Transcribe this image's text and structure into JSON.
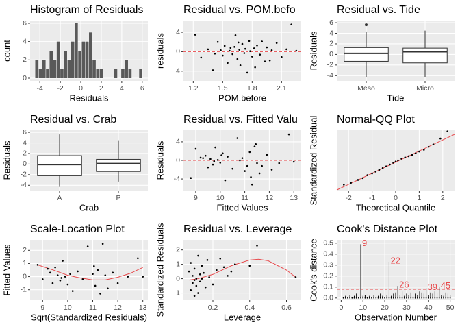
{
  "chart_data": [
    {
      "type": "histogram",
      "title": "Histogram of Residuals",
      "x_label": "Residuals",
      "y_label": "count",
      "bins": [
        -4.45,
        -4.1,
        -3.75,
        -3.4,
        -3.05,
        -2.7,
        -2.35,
        -2.0,
        -1.65,
        -1.3,
        -0.95,
        -0.6,
        -0.25,
        0.1,
        0.45,
        0.8,
        1.15,
        1.5,
        1.85,
        2.2,
        2.55,
        2.9,
        3.25,
        3.6,
        3.95,
        4.3,
        4.65,
        5.0,
        5.35,
        5.7,
        6.05
      ],
      "counts": [
        2,
        1,
        2,
        1,
        3,
        2,
        4,
        1,
        3,
        2,
        4,
        6,
        3,
        4,
        4,
        5,
        2,
        1,
        1,
        0,
        0,
        0,
        1,
        0,
        1,
        2,
        1,
        0,
        0,
        1
      ],
      "color": "#595959",
      "xlim": [
        -4.95,
        6.55
      ],
      "xticks": [
        -4,
        -2,
        0,
        2,
        4,
        6
      ],
      "ylim": [
        -0.3,
        6.3
      ],
      "yticks": [
        0,
        2,
        4,
        6
      ],
      "grid": true
    },
    {
      "type": "scatter",
      "title": "Residual vs. POM.befo",
      "x_label": "POM.before",
      "y_label": "residuals",
      "x": [
        1.22,
        1.28,
        1.35,
        1.4,
        1.45,
        1.48,
        1.5,
        1.52,
        1.55,
        1.57,
        1.58,
        1.6,
        1.62,
        1.63,
        1.65,
        1.67,
        1.68,
        1.7,
        1.72,
        1.73,
        1.75,
        1.77,
        1.78,
        1.8,
        1.82,
        1.83,
        1.85,
        1.88,
        1.9,
        1.93,
        1.95,
        1.98,
        2.0,
        2.05,
        2.1,
        2.15,
        2.2,
        2.25,
        1.42,
        1.66
      ],
      "y": [
        3.5,
        -1.2,
        0.5,
        -3.8,
        2.0,
        0.3,
        -0.8,
        1.2,
        -2.3,
        0.2,
        0.8,
        -0.5,
        1.0,
        3.4,
        -1.5,
        0.4,
        -2.8,
        1.6,
        -0.3,
        0.6,
        -4.3,
        2.2,
        0.1,
        -1.0,
        0.7,
        -3.2,
        1.3,
        -0.6,
        2.1,
        -2.0,
        0.9,
        -1.8,
        0.3,
        1.8,
        -1.1,
        0.5,
        5.6,
        0.2,
        -0.4,
        1.9
      ],
      "hline": 0,
      "line_color": "#e8474a",
      "xlim": [
        1.1,
        2.3
      ],
      "xticks": [
        1.2,
        1.5,
        1.8,
        2.1
      ],
      "ylim": [
        -6,
        6.4
      ],
      "yticks": [
        -4,
        0,
        4
      ],
      "grid": true
    },
    {
      "type": "box",
      "title": "Residual vs. Tide",
      "x_label": "Tide",
      "y_label": "Residuals",
      "categories": [
        "Meso",
        "Micro"
      ],
      "boxes": [
        {
          "low": -4.3,
          "q1": -1.3,
          "median": 0.2,
          "q3": 1.3,
          "high": 4.2,
          "outliers": [
            5.6
          ]
        },
        {
          "low": -4.3,
          "q1": -1.6,
          "median": 0.5,
          "q3": 1.2,
          "high": 4.5,
          "outliers": []
        }
      ],
      "ylim": [
        -5,
        6.4
      ],
      "yticks": [
        -4,
        -2,
        0,
        2,
        4,
        6
      ],
      "grid": true
    },
    {
      "type": "box",
      "title": "Residual vs. Crab",
      "x_label": "Crab",
      "y_label": "Residuals",
      "categories": [
        "A",
        "P"
      ],
      "boxes": [
        {
          "low": -4.3,
          "q1": -2.2,
          "median": -0.1,
          "q3": 1.6,
          "high": 5.6,
          "outliers": []
        },
        {
          "low": -3.3,
          "q1": -1.4,
          "median": 0.1,
          "q3": 0.9,
          "high": 4.5,
          "outliers": []
        }
      ],
      "ylim": [
        -5,
        6.4
      ],
      "yticks": [
        -4,
        -2,
        0,
        2,
        4,
        6
      ],
      "grid": true
    },
    {
      "type": "scatter",
      "title": "Residual vs. Fitted Valu",
      "x_label": "Fitted Values",
      "y_label": "Residuals",
      "x": [
        8.8,
        9.0,
        9.2,
        9.4,
        9.5,
        9.6,
        9.7,
        9.8,
        9.9,
        10.0,
        10.1,
        10.2,
        10.3,
        10.5,
        10.7,
        10.9,
        11.0,
        11.1,
        11.2,
        11.3,
        11.4,
        11.5,
        11.6,
        11.7,
        11.9,
        12.1,
        12.4,
        12.8,
        13.0,
        9.3,
        9.75,
        10.05,
        11.25,
        11.45,
        10.8
      ],
      "y": [
        -3.8,
        2.5,
        0.6,
        1.0,
        -1.5,
        0.3,
        -0.9,
        2.8,
        0.1,
        -0.5,
        1.5,
        -4.3,
        0.8,
        -1.8,
        4.8,
        0.5,
        -2.3,
        -1.2,
        1.8,
        -5.2,
        3.0,
        -0.6,
        -2.8,
        -1.2,
        1.2,
        -2.0,
        -0.6,
        5.6,
        -0.3,
        0.5,
        -0.2,
        1.1,
        -3.6,
        3.5,
        0.0
      ],
      "hline": 0,
      "line_color": "#e8474a",
      "xlim": [
        8.5,
        13.3
      ],
      "xticks": [
        9,
        10,
        11,
        12,
        13
      ],
      "ylim": [
        -6.5,
        6.5
      ],
      "yticks": [
        -4,
        0,
        4
      ],
      "grid": true
    },
    {
      "type": "scatter",
      "title": "Normal-QQ Plot",
      "x_label": "Theoretical Quantile",
      "y_label": "Standardized Residual",
      "x": [
        -2.2,
        -1.9,
        -1.6,
        -1.4,
        -1.2,
        -1.0,
        -0.85,
        -0.7,
        -0.55,
        -0.4,
        -0.25,
        -0.1,
        0,
        0.1,
        0.25,
        0.4,
        0.55,
        0.7,
        0.85,
        1.0,
        1.2,
        1.4,
        1.6,
        1.9,
        2.2
      ],
      "y": [
        -1.9,
        -1.75,
        -1.5,
        -1.35,
        -1.1,
        -0.95,
        -0.8,
        -0.65,
        -0.5,
        -0.35,
        -0.2,
        -0.05,
        0.05,
        0.15,
        0.3,
        0.4,
        0.5,
        0.6,
        0.75,
        0.9,
        1.05,
        1.3,
        1.5,
        2.0,
        2.6
      ],
      "curve": {
        "x": [
          -2.5,
          2.5
        ],
        "y": [
          -2.35,
          2.35
        ]
      },
      "line_color": "#e8474a",
      "xlim": [
        -2.5,
        2.5
      ],
      "xticks": [
        -2,
        -1,
        0,
        1,
        2
      ],
      "ylim": [
        -2.4,
        2.7
      ],
      "grid": true
    },
    {
      "type": "scatter",
      "title": "Scale-Location Plot",
      "x_label": "Sqrt(Standardized Residuals)",
      "y_label": "Fitted Values",
      "x": [
        8.8,
        9.0,
        9.2,
        9.3,
        9.4,
        9.5,
        9.6,
        9.7,
        9.8,
        9.9,
        10.0,
        10.1,
        10.2,
        10.4,
        10.6,
        10.8,
        11.0,
        11.1,
        11.2,
        11.3,
        11.4,
        11.5,
        11.6,
        11.8,
        12.0,
        12.4,
        12.8,
        13.0,
        9.75,
        11.05
      ],
      "y": [
        0.9,
        -0.2,
        0.6,
        0.3,
        -0.5,
        0.7,
        0.1,
        -0.3,
        1.2,
        0.0,
        -0.6,
        0.2,
        -1.1,
        0.4,
        -0.2,
        2.3,
        0.2,
        -0.7,
        0.5,
        -1.3,
        2.5,
        0.1,
        -0.9,
        0.3,
        -0.5,
        0.0,
        1.4,
        0.0,
        -0.1,
        0.8
      ],
      "curve": {
        "x": [
          8.8,
          9.5,
          10.0,
          10.5,
          11.0,
          11.5,
          12.0,
          12.5,
          13.0
        ],
        "y": [
          0.9,
          0.45,
          0.1,
          -0.1,
          -0.25,
          -0.25,
          -0.05,
          0.25,
          0.7
        ]
      },
      "line_color": "#e8474a",
      "xlim": [
        8.5,
        13.2
      ],
      "xticks": [
        9,
        10,
        11,
        12,
        13
      ],
      "ylim": [
        -1.8,
        2.8
      ],
      "yticks": [
        -1,
        0,
        1,
        2
      ],
      "grid": true
    },
    {
      "type": "scatter",
      "title": "Residual vs. Leverage",
      "x_label": "Leverage",
      "y_label": "Standardized Residuals",
      "x": [
        0.07,
        0.08,
        0.08,
        0.09,
        0.09,
        0.1,
        0.1,
        0.11,
        0.11,
        0.12,
        0.12,
        0.13,
        0.13,
        0.14,
        0.15,
        0.16,
        0.17,
        0.18,
        0.2,
        0.22,
        0.24,
        0.26,
        0.28,
        0.3,
        0.32,
        0.4,
        0.44,
        0.65,
        0.1,
        0.14
      ],
      "y": [
        0.5,
        -0.8,
        1.1,
        -0.3,
        0.2,
        -1.2,
        0.7,
        0.0,
        -0.5,
        1.6,
        -1.0,
        0.3,
        -0.2,
        0.9,
        0.4,
        -0.6,
        1.3,
        0.1,
        -0.4,
        0.6,
        1.4,
        0.8,
        0.2,
        0.5,
        1.0,
        0.9,
        2.3,
        0.1,
        -0.1,
        0.0
      ],
      "curve": {
        "x": [
          0.07,
          0.12,
          0.2,
          0.3,
          0.4,
          0.45,
          0.5,
          0.6,
          0.65
        ],
        "y": [
          -0.1,
          0.0,
          0.3,
          0.9,
          1.3,
          1.35,
          1.25,
          0.6,
          0.1
        ]
      },
      "line_color": "#e8474a",
      "xlim": [
        0.04,
        0.68
      ],
      "xticks": [
        0.2,
        0.4,
        0.6
      ],
      "ylim": [
        -1.5,
        2.7
      ],
      "yticks": [
        -1,
        0,
        1,
        2
      ],
      "grid": true
    },
    {
      "type": "stem",
      "title": "Cook's Distance Plot",
      "x_label": "Observation Number",
      "y_label": "Cook's distance",
      "x": [
        1,
        2,
        3,
        4,
        5,
        6,
        7,
        8,
        9,
        10,
        11,
        12,
        13,
        14,
        15,
        16,
        17,
        18,
        19,
        20,
        21,
        22,
        23,
        24,
        25,
        26,
        27,
        28,
        29,
        30,
        31,
        32,
        33,
        34,
        35,
        36,
        37,
        38,
        39,
        40,
        41,
        42,
        43,
        44,
        45,
        46,
        47,
        48,
        49,
        50
      ],
      "y": [
        0.01,
        0.02,
        0.005,
        0.03,
        0.01,
        0.02,
        0.04,
        0.01,
        0.49,
        0.02,
        0.03,
        0.01,
        0.02,
        0.005,
        0.03,
        0.01,
        0.02,
        0.04,
        0.02,
        0.01,
        0.03,
        0.33,
        0.02,
        0.04,
        0.05,
        0.11,
        0.03,
        0.06,
        0.02,
        0.04,
        0.03,
        0.05,
        0.02,
        0.04,
        0.03,
        0.06,
        0.05,
        0.04,
        0.09,
        0.03,
        0.05,
        0.04,
        0.06,
        0.05,
        0.1,
        0.03,
        0.02,
        0.05,
        0.04,
        0.03
      ],
      "outliers": [
        9,
        22,
        26,
        39,
        45
      ],
      "hline": 0.08,
      "line_color": "#e8474a",
      "xlim": [
        -2,
        52
      ],
      "xticks": [
        0,
        10,
        20,
        30,
        40,
        50
      ],
      "ylim": [
        -0.02,
        0.53
      ],
      "yticks": [
        {
          "value": 0,
          "label": "0.0"
        },
        0.1,
        0.2,
        0.3,
        0.4,
        0.5
      ],
      "grid": true
    }
  ]
}
